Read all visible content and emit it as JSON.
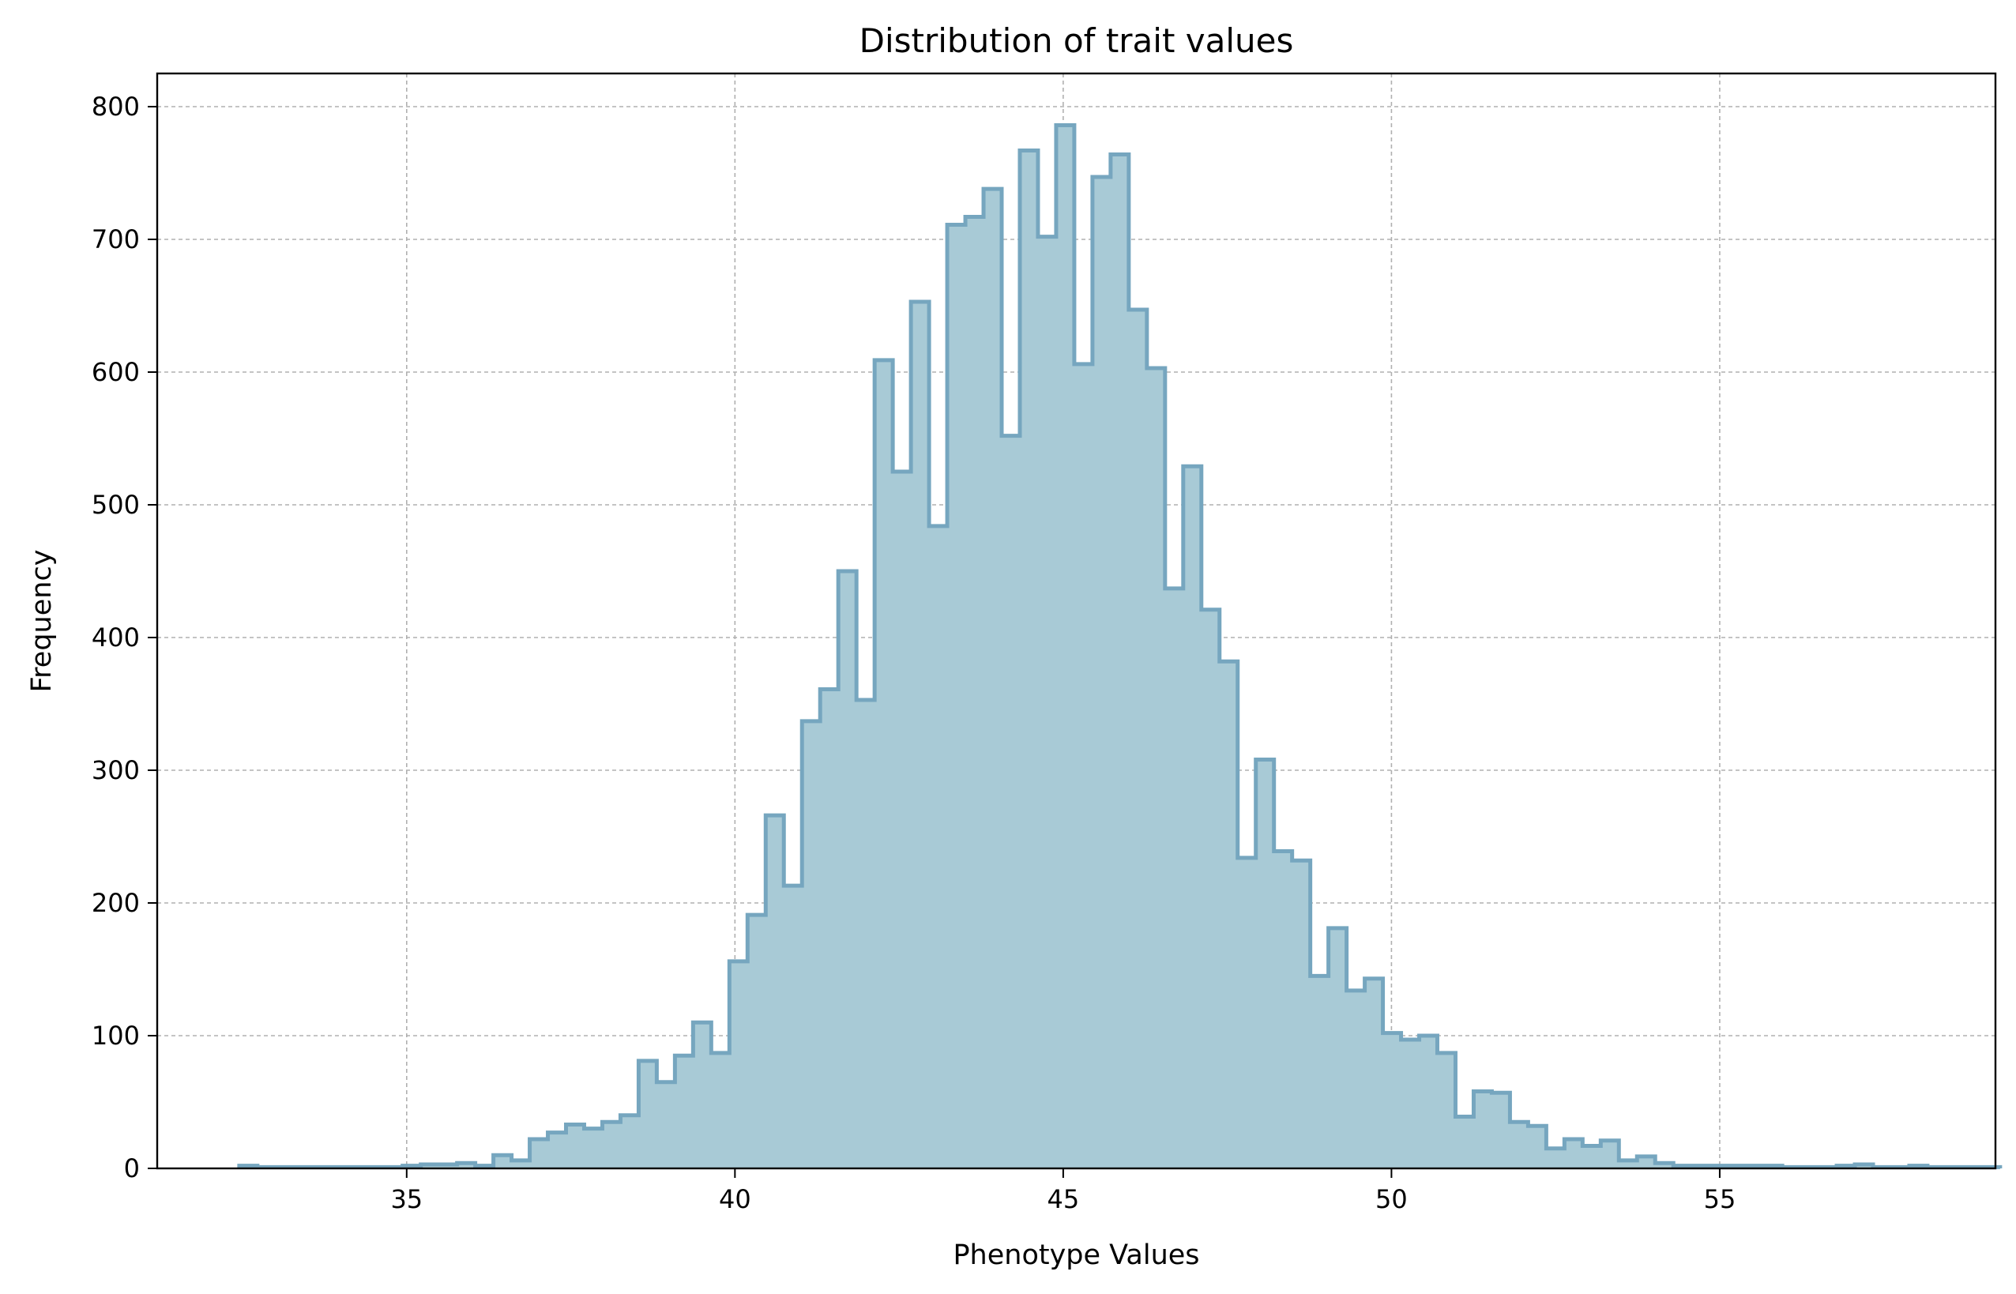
{
  "chart_data": {
    "type": "histogram",
    "title": "Distribution of trait values",
    "xlabel": "Phenotype Values",
    "ylabel": "Frequency",
    "xlim": [
      31.2,
      59.2
    ],
    "ylim": [
      0,
      825
    ],
    "xticks": [
      35,
      40,
      45,
      50,
      55
    ],
    "yticks": [
      0,
      100,
      200,
      300,
      400,
      500,
      600,
      700,
      800
    ],
    "grid": true,
    "histtype": "stepfilled",
    "fill_color": "#a8cad6",
    "edge_color": "#76a6bf",
    "bin_start": 32.45,
    "bin_width": 0.2765,
    "counts": [
      2,
      1,
      1,
      1,
      1,
      1,
      1,
      1,
      1,
      2,
      3,
      3,
      4,
      2,
      10,
      6,
      22,
      27,
      33,
      30,
      35,
      40,
      81,
      65,
      85,
      110,
      87,
      156,
      191,
      266,
      213,
      337,
      361,
      450,
      353,
      609,
      525,
      653,
      484,
      711,
      717,
      738,
      552,
      767,
      702,
      786,
      606,
      747,
      764,
      647,
      603,
      437,
      529,
      421,
      382,
      234,
      308,
      239,
      232,
      145,
      181,
      134,
      143,
      102,
      97,
      100,
      87,
      39,
      58,
      57,
      35,
      32,
      15,
      22,
      17,
      21,
      6,
      9,
      4,
      2,
      2,
      2,
      2,
      2,
      2,
      1,
      1,
      1,
      2,
      3,
      1,
      1,
      2,
      1,
      1,
      1,
      1
    ]
  }
}
